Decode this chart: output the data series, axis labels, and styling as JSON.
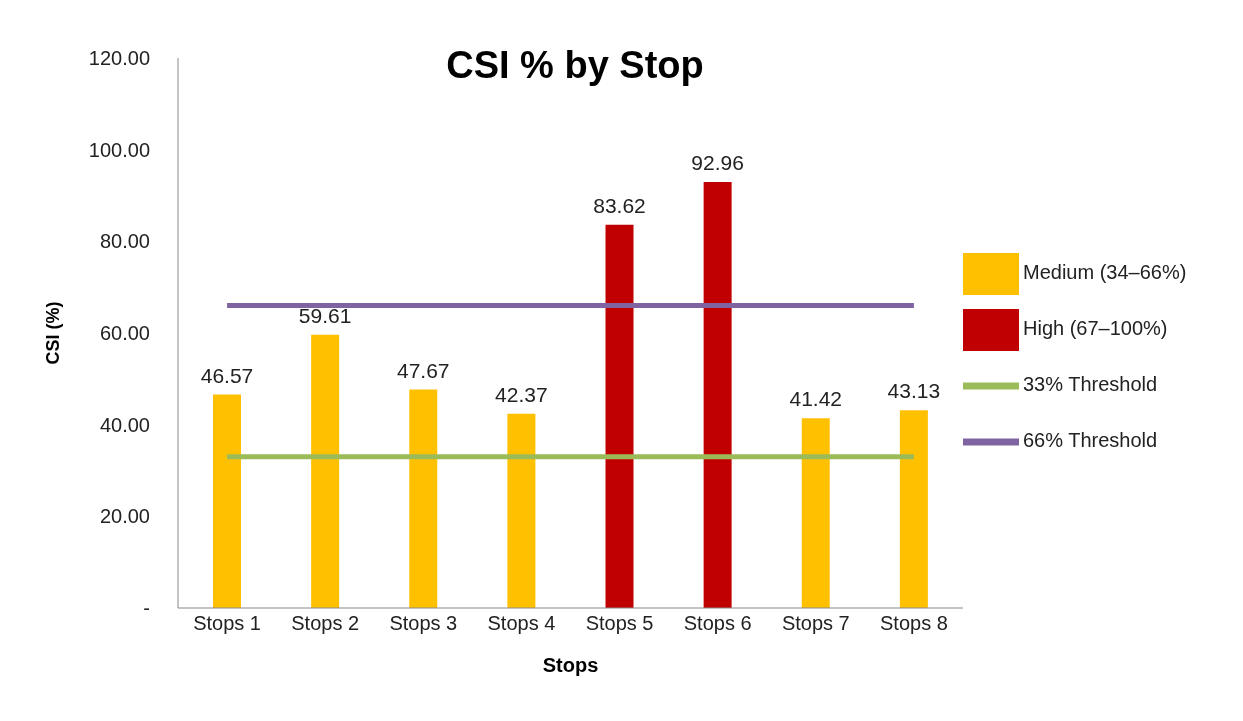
{
  "chart_data": {
    "type": "bar",
    "title": "CSI % by Stop",
    "xlabel": "Stops",
    "ylabel": "CSI (%)",
    "categories": [
      "Stops 1",
      "Stops 2",
      "Stops 3",
      "Stops 4",
      "Stops 5",
      "Stops 6",
      "Stops 7",
      "Stops 8"
    ],
    "series": [
      {
        "name": "Medium (34–66%)",
        "color": "#ffc000",
        "values": [
          46.57,
          59.61,
          47.67,
          42.37,
          null,
          null,
          41.42,
          43.13
        ],
        "value_labels": [
          "46.57",
          "59.61",
          "47.67",
          "42.37",
          null,
          null,
          "41.42",
          "43.13"
        ]
      },
      {
        "name": "High (67–100%)",
        "color": "#c00000",
        "values": [
          null,
          null,
          null,
          null,
          83.62,
          92.96,
          null,
          null
        ],
        "value_labels": [
          null,
          null,
          null,
          null,
          "83.62",
          "92.96",
          null,
          null
        ]
      },
      {
        "name": "33% Threshold",
        "type": "line",
        "color": "#9bbb59",
        "values": [
          33,
          33,
          33,
          33,
          33,
          33,
          33,
          33
        ]
      },
      {
        "name": "66% Threshold",
        "type": "line",
        "color": "#8064a2",
        "values": [
          66,
          66,
          66,
          66,
          66,
          66,
          66,
          66
        ]
      }
    ],
    "stacked": true,
    "marker": "none",
    "line_style": "solid",
    "grid": false,
    "legend": "right",
    "ylim": [
      0,
      120
    ],
    "yticks": [
      {
        "value": 0,
        "label": "-"
      },
      {
        "value": 20,
        "label": "20.00"
      },
      {
        "value": 40,
        "label": "40.00"
      },
      {
        "value": 60,
        "label": "60.00"
      },
      {
        "value": 80,
        "label": "80.00"
      },
      {
        "value": 100,
        "label": "100.00"
      },
      {
        "value": 120,
        "label": "120.00"
      }
    ]
  }
}
